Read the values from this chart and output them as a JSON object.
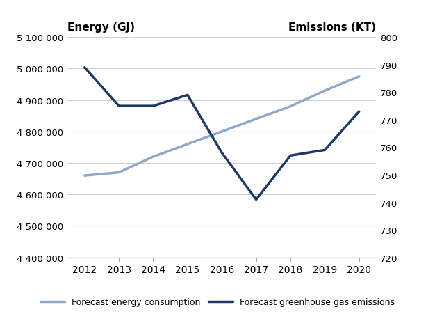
{
  "years": [
    2012,
    2013,
    2014,
    2015,
    2016,
    2017,
    2018,
    2019,
    2020
  ],
  "energy_consumption": [
    4660000,
    4670000,
    4720000,
    4760000,
    4800000,
    4840000,
    4880000,
    4930000,
    4975000
  ],
  "ghg_emissions": [
    789,
    775,
    775,
    779,
    758,
    741,
    757,
    759,
    773
  ],
  "energy_color": "#8fa8c8",
  "ghg_color": "#1f3864",
  "ylabel_left": "Energy (GJ)",
  "ylabel_right": "Emissions (KT)",
  "ylim_left": [
    4400000,
    5100000
  ],
  "ylim_right": [
    720,
    800
  ],
  "yticks_left": [
    4400000,
    4500000,
    4600000,
    4700000,
    4800000,
    4900000,
    5000000,
    5100000
  ],
  "yticks_right": [
    720,
    730,
    740,
    750,
    760,
    770,
    780,
    790,
    800
  ],
  "legend_energy": "Forecast energy consumption",
  "legend_ghg": "Forecast greenhouse gas emissions",
  "background_color": "#ffffff",
  "grid_color": "#d0d0d0",
  "line_width": 2.5
}
